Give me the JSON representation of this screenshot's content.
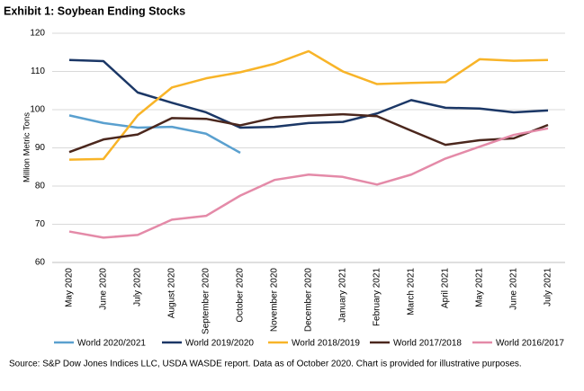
{
  "chart_data": {
    "type": "line",
    "title": "Exhibit 1: Soybean Ending Stocks",
    "y_label": "Million Metric Tons",
    "categories": [
      "May 2020",
      "June 2020",
      "July 2020",
      "August 2020",
      "September 2020",
      "October 2020",
      "November 2020",
      "December 2020",
      "January 2021",
      "February 2021",
      "March 2021",
      "April 2021",
      "May 2021",
      "June 2021",
      "July 2021"
    ],
    "series": [
      {
        "name": "World 2020/2021",
        "color": "#5aa0cf",
        "values": [
          98.5,
          96.5,
          95.3,
          95.5,
          93.7,
          88.7,
          null,
          null,
          null,
          null,
          null,
          null,
          null,
          null,
          null
        ]
      },
      {
        "name": "World 2019/2020",
        "color": "#1b3766",
        "values": [
          113,
          112.7,
          104.5,
          101.8,
          99.3,
          95.3,
          95.5,
          96.5,
          96.8,
          99,
          102.5,
          100.5,
          100.3,
          99.3,
          99.8
        ]
      },
      {
        "name": "World 2018/2019",
        "color": "#f8b428",
        "values": [
          86.9,
          87.1,
          98.5,
          105.8,
          108.2,
          109.8,
          112,
          115.3,
          110,
          106.7,
          107,
          107.2,
          113.2,
          112.8,
          113
        ]
      },
      {
        "name": "World 2017/2018",
        "color": "#4b271d",
        "values": [
          88.9,
          92.2,
          93.5,
          97.8,
          97.6,
          95.9,
          97.9,
          98.4,
          98.8,
          98.3,
          94.5,
          90.8,
          92,
          92.5,
          96
        ]
      },
      {
        "name": "World 2016/2017",
        "color": "#e48aa8",
        "values": [
          68.1,
          66.5,
          67.2,
          71.2,
          72.2,
          77.5,
          81.6,
          83,
          82.4,
          80.4,
          83,
          87.2,
          90.3,
          93.4,
          95.1
        ]
      }
    ],
    "ylim": [
      60,
      120
    ],
    "yticks": [
      60,
      70,
      80,
      90,
      100,
      110,
      120
    ],
    "grid": true,
    "source": "Source: S&P Dow Jones Indices LLC, USDA WASDE report. Data as of October 2020. Chart is provided for illustrative purposes."
  }
}
